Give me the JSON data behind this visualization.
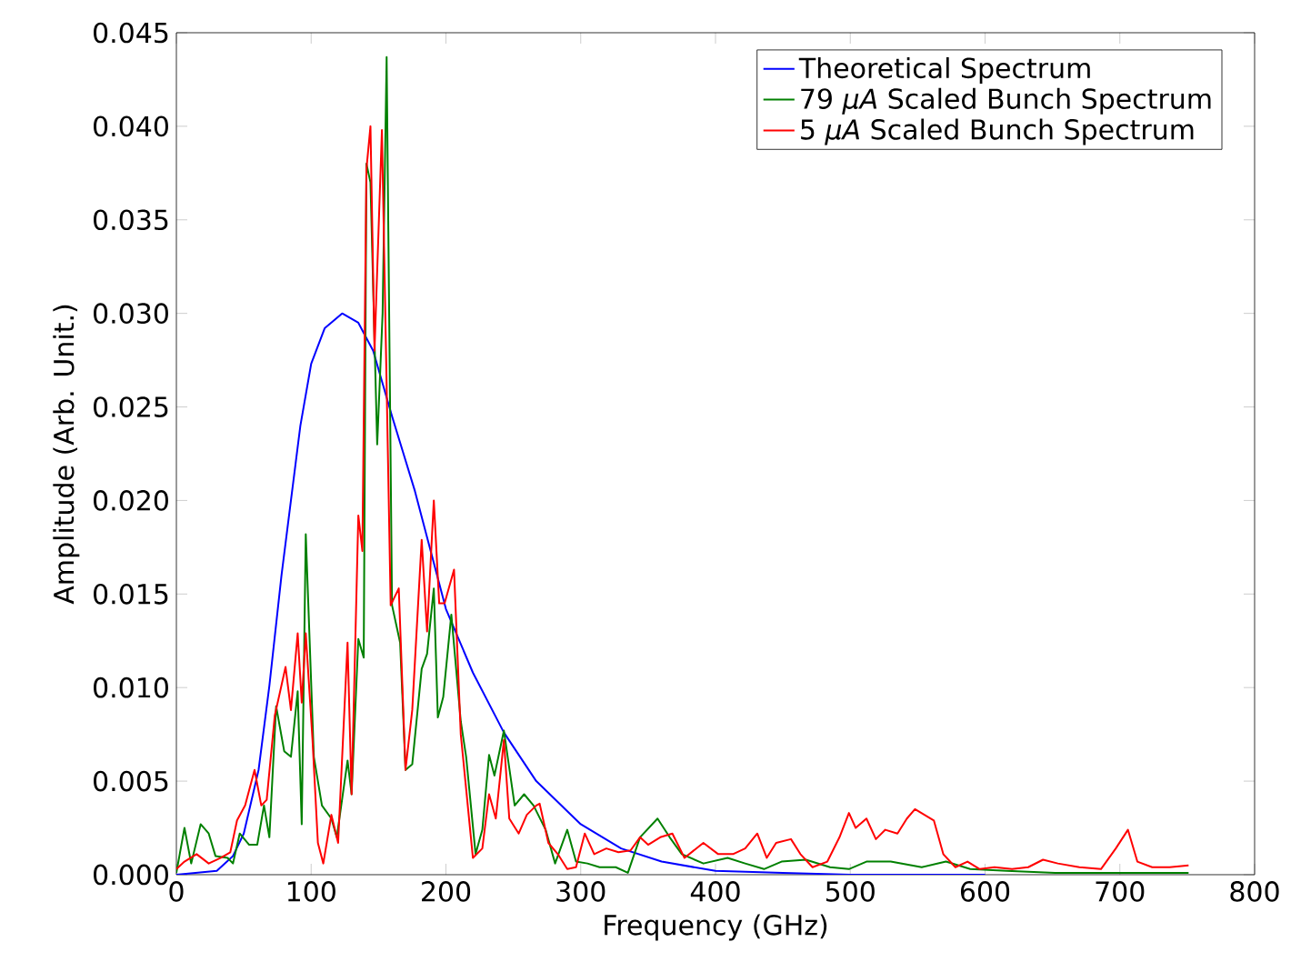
{
  "chart_data": {
    "type": "line",
    "xlabel": "Frequency (GHz)",
    "ylabel": "Amplitude (Arb. Unit.)",
    "xlim": [
      0,
      800
    ],
    "ylim": [
      0,
      0.045
    ],
    "xticks": [
      0,
      100,
      200,
      300,
      400,
      500,
      600,
      700,
      800
    ],
    "yticks": [
      {
        "value": 0,
        "label": "0.000"
      },
      {
        "value": 0.005,
        "label": "0.005"
      },
      {
        "value": 0.01,
        "label": "0.010"
      },
      {
        "value": 0.015,
        "label": "0.015"
      },
      {
        "value": 0.02,
        "label": "0.020"
      },
      {
        "value": 0.025,
        "label": "0.025"
      },
      {
        "value": 0.03,
        "label": "0.030"
      },
      {
        "value": 0.035,
        "label": "0.035"
      },
      {
        "value": 0.04,
        "label": "0.040"
      },
      {
        "value": 0.045,
        "label": "0.045"
      }
    ],
    "legend": "top right",
    "grid": false,
    "marker": "none",
    "line_style": "solid",
    "series": [
      {
        "name": "Theoretical Spectrum",
        "color": "#0000ff",
        "x": [
          0,
          30,
          42,
          50,
          61,
          69,
          78,
          85,
          92,
          100,
          110,
          123,
          135,
          146,
          160,
          177,
          200,
          220,
          243,
          267,
          300,
          330,
          360,
          400,
          450,
          500,
          600
        ],
        "values": [
          0,
          0.0002,
          0.001,
          0.0022,
          0.0056,
          0.0101,
          0.016,
          0.02,
          0.024,
          0.0273,
          0.0292,
          0.03,
          0.0295,
          0.028,
          0.0245,
          0.0205,
          0.0142,
          0.0108,
          0.0076,
          0.005,
          0.0027,
          0.0014,
          0.0007,
          0.0002,
          0.0001,
          0,
          0
        ]
      },
      {
        "name": "79 *μA* Scaled Bunch Spectrum",
        "color": "#008000",
        "x": [
          0,
          6,
          11,
          18,
          24,
          29,
          38,
          42,
          47,
          54,
          60,
          65,
          69,
          74,
          80,
          85,
          90,
          93,
          96,
          102,
          108,
          115,
          119,
          127,
          130,
          135,
          139,
          141,
          144,
          149,
          153,
          156,
          160,
          166,
          170,
          175,
          182,
          186,
          191,
          194,
          198,
          204,
          211,
          215,
          222,
          227,
          232,
          236,
          243,
          251,
          258,
          265,
          274,
          281,
          290,
          296.5,
          305,
          314,
          326,
          335,
          344,
          357,
          366,
          375,
          391,
          409,
          422,
          436,
          449,
          467,
          485,
          499,
          512,
          530,
          553,
          571,
          589,
          616,
          652,
          697,
          751
        ],
        "values": [
          0.0001,
          0.0025,
          0.0006,
          0.0027,
          0.0022,
          0.001,
          0.0009,
          0.0006,
          0.0022,
          0.0016,
          0.0016,
          0.0037,
          0.002,
          0.009,
          0.0066,
          0.0063,
          0.0098,
          0.0027,
          0.0182,
          0.0063,
          0.0037,
          0.003,
          0.002,
          0.0061,
          0.0043,
          0.0126,
          0.0116,
          0.038,
          0.037,
          0.023,
          0.03,
          0.0437,
          0.0144,
          0.0124,
          0.0056,
          0.0059,
          0.011,
          0.0118,
          0.0153,
          0.0084,
          0.0095,
          0.0139,
          0.0082,
          0.0063,
          0.0011,
          0.0024,
          0.0064,
          0.0053,
          0.0077,
          0.0037,
          0.0043,
          0.0037,
          0.0024,
          0.0006,
          0.0024,
          0.0007,
          0.0006,
          0.0004,
          0.0004,
          0.0001,
          0.002,
          0.003,
          0.002,
          0.0011,
          0.0006,
          0.0009,
          0.0006,
          0.0003,
          0.0007,
          0.0008,
          0.0004,
          0.0003,
          0.0007,
          0.0007,
          0.0004,
          0.0007,
          0.0003,
          0.0002,
          0.0001,
          0.0001,
          0.0001
        ]
      },
      {
        "name": "5 *μA* Scaled Bunch Spectrum",
        "color": "#ff0000",
        "x": [
          0,
          6,
          15,
          24,
          33,
          40,
          45,
          51,
          58,
          63,
          67,
          73,
          81,
          85,
          90,
          93,
          96,
          101,
          105,
          109,
          115,
          120,
          127,
          130,
          135,
          138,
          141,
          144,
          147,
          152.5,
          159,
          165,
          170,
          175,
          182,
          186,
          191,
          195,
          199,
          206,
          211,
          220,
          227,
          232,
          237,
          243,
          247,
          254,
          260,
          267,
          269.5,
          276,
          283,
          290,
          296.5,
          303,
          310,
          319,
          328,
          337,
          344,
          350,
          359,
          368,
          377,
          391,
          402,
          413,
          422,
          431,
          438,
          445,
          456,
          463,
          472,
          483,
          492,
          499,
          504,
          512,
          519,
          526,
          535,
          542,
          548,
          555,
          562,
          569,
          578,
          587,
          596,
          607,
          620,
          632,
          643,
          654,
          670,
          686,
          697,
          706,
          713,
          724,
          737,
          751
        ],
        "values": [
          0.0003,
          0.0007,
          0.0011,
          0.0006,
          0.0009,
          0.0012,
          0.0029,
          0.0037,
          0.0056,
          0.0037,
          0.004,
          0.0085,
          0.0111,
          0.0088,
          0.0129,
          0.0092,
          0.0129,
          0.0072,
          0.0017,
          0.0006,
          0.0032,
          0.0017,
          0.0124,
          0.0043,
          0.0192,
          0.0173,
          0.0377,
          0.04,
          0.028,
          0.0398,
          0.0144,
          0.0153,
          0.0056,
          0.0088,
          0.0179,
          0.013,
          0.02,
          0.0145,
          0.0145,
          0.0163,
          0.0075,
          0.0009,
          0.0014,
          0.0043,
          0.003,
          0.0072,
          0.003,
          0.0022,
          0.0032,
          0.0037,
          0.0038,
          0.0017,
          0.0011,
          0.0003,
          0.0004,
          0.0022,
          0.0011,
          0.0014,
          0.0012,
          0.0013,
          0.002,
          0.0016,
          0.002,
          0.0022,
          0.0009,
          0.0017,
          0.0011,
          0.0011,
          0.0014,
          0.0022,
          0.0009,
          0.0017,
          0.0019,
          0.0011,
          0.0004,
          0.0007,
          0.002,
          0.0033,
          0.0025,
          0.003,
          0.0019,
          0.0024,
          0.0022,
          0.003,
          0.0035,
          0.0032,
          0.0029,
          0.0011,
          0.0004,
          0.0007,
          0.0003,
          0.0004,
          0.0003,
          0.0004,
          0.0008,
          0.0006,
          0.0004,
          0.0003,
          0.0014,
          0.0024,
          0.0007,
          0.0004,
          0.0004,
          0.0005
        ]
      }
    ]
  }
}
